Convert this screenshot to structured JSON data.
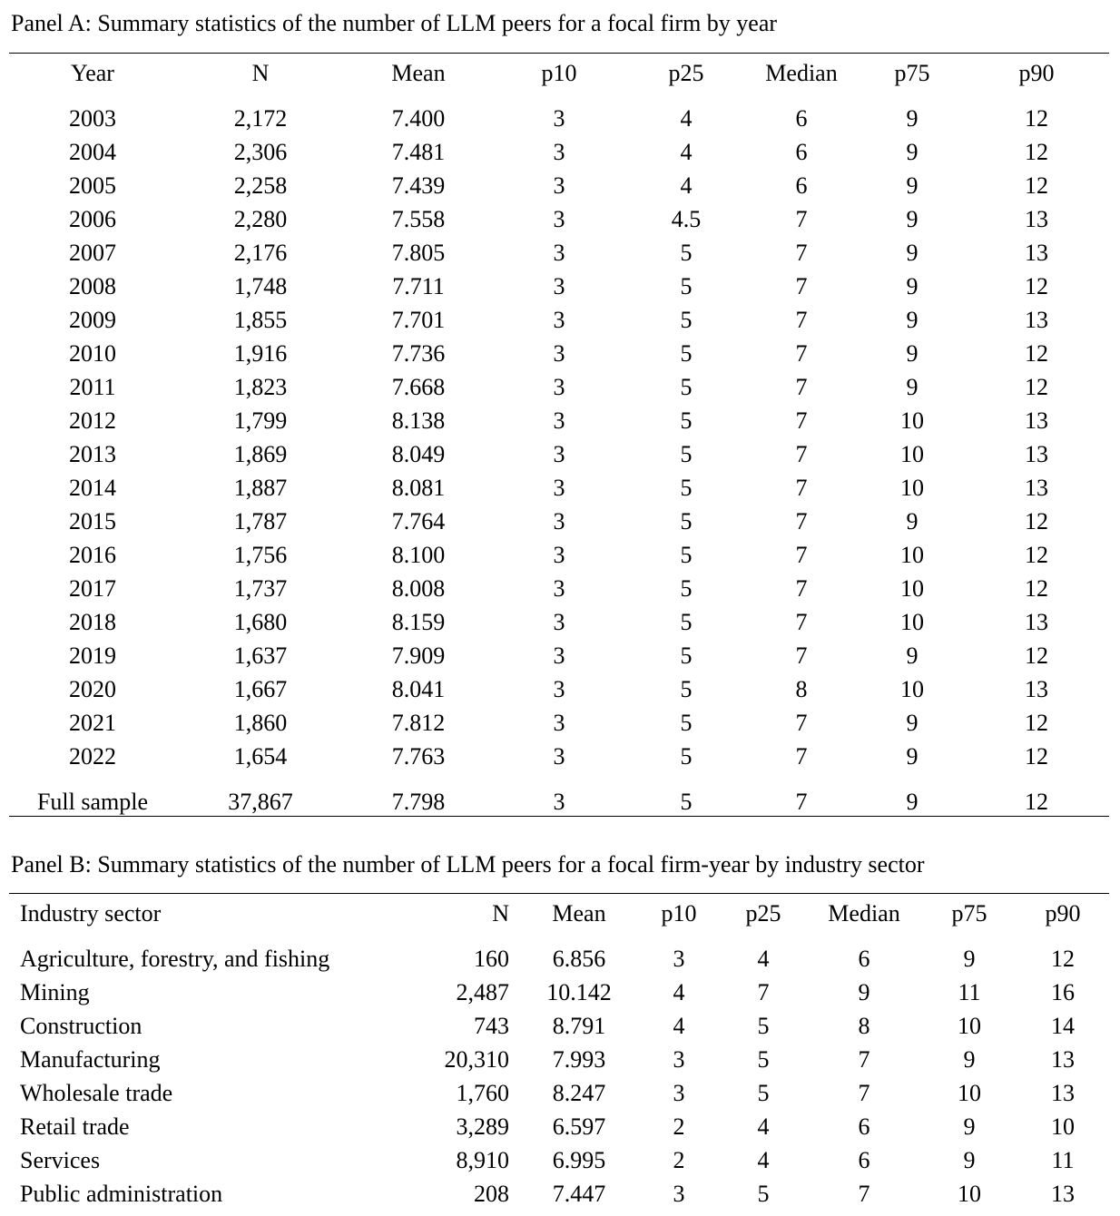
{
  "panelA": {
    "title": "Panel A: Summary statistics of the number of LLM peers for a focal firm by year",
    "headers": [
      "Year",
      "N",
      "Mean",
      "p10",
      "p25",
      "Median",
      "p75",
      "p90"
    ],
    "rows": [
      [
        "2003",
        "2,172",
        "7.400",
        "3",
        "4",
        "6",
        "9",
        "12"
      ],
      [
        "2004",
        "2,306",
        "7.481",
        "3",
        "4",
        "6",
        "9",
        "12"
      ],
      [
        "2005",
        "2,258",
        "7.439",
        "3",
        "4",
        "6",
        "9",
        "12"
      ],
      [
        "2006",
        "2,280",
        "7.558",
        "3",
        "4.5",
        "7",
        "9",
        "13"
      ],
      [
        "2007",
        "2,176",
        "7.805",
        "3",
        "5",
        "7",
        "9",
        "13"
      ],
      [
        "2008",
        "1,748",
        "7.711",
        "3",
        "5",
        "7",
        "9",
        "12"
      ],
      [
        "2009",
        "1,855",
        "7.701",
        "3",
        "5",
        "7",
        "9",
        "13"
      ],
      [
        "2010",
        "1,916",
        "7.736",
        "3",
        "5",
        "7",
        "9",
        "12"
      ],
      [
        "2011",
        "1,823",
        "7.668",
        "3",
        "5",
        "7",
        "9",
        "12"
      ],
      [
        "2012",
        "1,799",
        "8.138",
        "3",
        "5",
        "7",
        "10",
        "13"
      ],
      [
        "2013",
        "1,869",
        "8.049",
        "3",
        "5",
        "7",
        "10",
        "13"
      ],
      [
        "2014",
        "1,887",
        "8.081",
        "3",
        "5",
        "7",
        "10",
        "13"
      ],
      [
        "2015",
        "1,787",
        "7.764",
        "3",
        "5",
        "7",
        "9",
        "12"
      ],
      [
        "2016",
        "1,756",
        "8.100",
        "3",
        "5",
        "7",
        "10",
        "12"
      ],
      [
        "2017",
        "1,737",
        "8.008",
        "3",
        "5",
        "7",
        "10",
        "12"
      ],
      [
        "2018",
        "1,680",
        "8.159",
        "3",
        "5",
        "7",
        "10",
        "13"
      ],
      [
        "2019",
        "1,637",
        "7.909",
        "3",
        "5",
        "7",
        "9",
        "12"
      ],
      [
        "2020",
        "1,667",
        "8.041",
        "3",
        "5",
        "8",
        "10",
        "13"
      ],
      [
        "2021",
        "1,860",
        "7.812",
        "3",
        "5",
        "7",
        "9",
        "12"
      ],
      [
        "2022",
        "1,654",
        "7.763",
        "3",
        "5",
        "7",
        "9",
        "12"
      ]
    ],
    "full_sample": [
      "Full sample",
      "37,867",
      "7.798",
      "3",
      "5",
      "7",
      "9",
      "12"
    ]
  },
  "panelB": {
    "title": "Panel B: Summary statistics of the number of LLM peers for a focal firm-year by industry sector",
    "headers": [
      "Industry sector",
      "N",
      "Mean",
      "p10",
      "p25",
      "Median",
      "p75",
      "p90"
    ],
    "rows": [
      [
        "Agriculture, forestry, and fishing",
        "160",
        "6.856",
        "3",
        "4",
        "6",
        "9",
        "12"
      ],
      [
        "Mining",
        "2,487",
        "10.142",
        "4",
        "7",
        "9",
        "11",
        "16"
      ],
      [
        "Construction",
        "743",
        "8.791",
        "4",
        "5",
        "8",
        "10",
        "14"
      ],
      [
        "Manufacturing",
        "20,310",
        "7.993",
        "3",
        "5",
        "7",
        "9",
        "13"
      ],
      [
        "Wholesale trade",
        "1,760",
        "8.247",
        "3",
        "5",
        "7",
        "10",
        "13"
      ],
      [
        "Retail trade",
        "3,289",
        "6.597",
        "2",
        "4",
        "6",
        "9",
        "10"
      ],
      [
        "Services",
        "8,910",
        "6.995",
        "2",
        "4",
        "6",
        "9",
        "11"
      ],
      [
        "Public administration",
        "208",
        "7.447",
        "3",
        "5",
        "7",
        "10",
        "13"
      ]
    ]
  }
}
